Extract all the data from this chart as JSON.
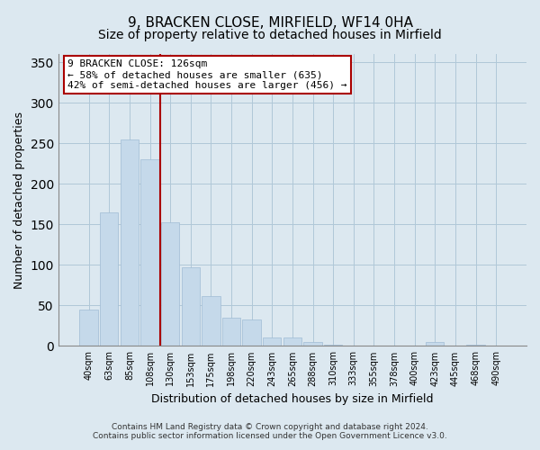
{
  "title": "9, BRACKEN CLOSE, MIRFIELD, WF14 0HA",
  "subtitle": "Size of property relative to detached houses in Mirfield",
  "xlabel": "Distribution of detached houses by size in Mirfield",
  "ylabel": "Number of detached properties",
  "bar_labels": [
    "40sqm",
    "63sqm",
    "85sqm",
    "108sqm",
    "130sqm",
    "153sqm",
    "175sqm",
    "198sqm",
    "220sqm",
    "243sqm",
    "265sqm",
    "288sqm",
    "310sqm",
    "333sqm",
    "355sqm",
    "378sqm",
    "400sqm",
    "423sqm",
    "445sqm",
    "468sqm",
    "490sqm"
  ],
  "bar_heights": [
    45,
    165,
    255,
    230,
    153,
    97,
    62,
    35,
    33,
    11,
    10,
    5,
    2,
    1,
    1,
    0,
    0,
    5,
    0,
    2,
    1
  ],
  "bar_color": "#c5d9ea",
  "bar_edge_color": "#a0bcd4",
  "vline_color": "#aa0000",
  "annotation_text": "9 BRACKEN CLOSE: 126sqm\n← 58% of detached houses are smaller (635)\n42% of semi-detached houses are larger (456) →",
  "annotation_box_color": "#ffffff",
  "annotation_border_color": "#aa0000",
  "ylim": [
    0,
    360
  ],
  "yticks": [
    0,
    50,
    100,
    150,
    200,
    250,
    300,
    350
  ],
  "footer_line1": "Contains HM Land Registry data © Crown copyright and database right 2024.",
  "footer_line2": "Contains public sector information licensed under the Open Government Licence v3.0.",
  "bg_color": "#dce8f0",
  "plot_bg_color": "#dce8f0",
  "grid_color": "#b0c8d8",
  "title_fontsize": 11,
  "subtitle_fontsize": 10
}
